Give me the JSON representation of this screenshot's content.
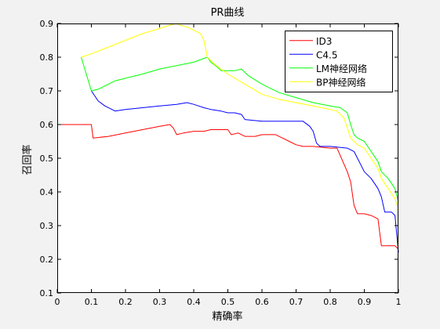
{
  "chart_data": {
    "type": "line",
    "title": "PR曲线",
    "xlabel": "精确率",
    "ylabel": "召回率",
    "xlim": [
      0,
      1
    ],
    "ylim": [
      0.1,
      0.9
    ],
    "xticks": [
      0,
      0.1,
      0.2,
      0.3,
      0.4,
      0.5,
      0.6,
      0.7,
      0.8,
      0.9,
      1
    ],
    "xtick_labels": [
      "0",
      "0.1",
      "0.2",
      "0.3",
      "0.4",
      "0.5",
      "0.6",
      "0.7",
      "0.8",
      "0.9",
      "1"
    ],
    "yticks": [
      0.1,
      0.2,
      0.3,
      0.4,
      0.5,
      0.6,
      0.7,
      0.8,
      0.9
    ],
    "ytick_labels": [
      "0.1",
      "0.2",
      "0.3",
      "0.4",
      "0.5",
      "0.6",
      "0.7",
      "0.8",
      "0.9"
    ],
    "grid": false,
    "legend_position": "top-right",
    "series": [
      {
        "name": "ID3",
        "color": "#ff0000",
        "x": [
          0,
          0.05,
          0.1,
          0.105,
          0.15,
          0.2,
          0.25,
          0.3,
          0.33,
          0.34,
          0.35,
          0.37,
          0.4,
          0.43,
          0.45,
          0.48,
          0.5,
          0.51,
          0.53,
          0.55,
          0.56,
          0.58,
          0.6,
          0.62,
          0.64,
          0.66,
          0.68,
          0.7,
          0.72,
          0.75,
          0.8,
          0.82,
          0.85,
          0.86,
          0.87,
          0.88,
          0.9,
          0.92,
          0.94,
          0.95,
          0.97,
          0.99,
          1.0
        ],
        "y": [
          0.6,
          0.6,
          0.6,
          0.56,
          0.565,
          0.575,
          0.585,
          0.595,
          0.6,
          0.59,
          0.57,
          0.575,
          0.58,
          0.58,
          0.585,
          0.585,
          0.585,
          0.57,
          0.575,
          0.565,
          0.565,
          0.565,
          0.57,
          0.57,
          0.57,
          0.56,
          0.55,
          0.54,
          0.535,
          0.535,
          0.53,
          0.53,
          0.46,
          0.43,
          0.36,
          0.335,
          0.335,
          0.33,
          0.32,
          0.24,
          0.24,
          0.24,
          0.23
        ]
      },
      {
        "name": "C4.5",
        "color": "#0000ff",
        "x": [
          0.1,
          0.12,
          0.14,
          0.17,
          0.2,
          0.25,
          0.3,
          0.35,
          0.38,
          0.4,
          0.43,
          0.45,
          0.48,
          0.5,
          0.52,
          0.54,
          0.55,
          0.6,
          0.65,
          0.7,
          0.72,
          0.74,
          0.75,
          0.76,
          0.77,
          0.8,
          0.85,
          0.87,
          0.9,
          0.92,
          0.94,
          0.95,
          0.96,
          0.98,
          0.99,
          1.0
        ],
        "y": [
          0.7,
          0.67,
          0.655,
          0.64,
          0.645,
          0.65,
          0.655,
          0.66,
          0.665,
          0.66,
          0.65,
          0.645,
          0.64,
          0.635,
          0.635,
          0.63,
          0.615,
          0.61,
          0.61,
          0.61,
          0.61,
          0.595,
          0.58,
          0.545,
          0.535,
          0.535,
          0.53,
          0.52,
          0.46,
          0.44,
          0.41,
          0.385,
          0.34,
          0.34,
          0.33,
          0.22
        ]
      },
      {
        "name": "LM神经网络",
        "color": "#00ff00",
        "x": [
          0.07,
          0.1,
          0.12,
          0.17,
          0.25,
          0.3,
          0.35,
          0.4,
          0.44,
          0.45,
          0.47,
          0.48,
          0.52,
          0.54,
          0.56,
          0.6,
          0.65,
          0.7,
          0.75,
          0.8,
          0.83,
          0.85,
          0.86,
          0.87,
          0.88,
          0.9,
          0.92,
          0.94,
          0.95,
          0.97,
          0.99,
          1.0
        ],
        "y": [
          0.8,
          0.7,
          0.705,
          0.73,
          0.75,
          0.765,
          0.775,
          0.785,
          0.8,
          0.785,
          0.77,
          0.76,
          0.76,
          0.765,
          0.745,
          0.72,
          0.695,
          0.68,
          0.665,
          0.655,
          0.65,
          0.635,
          0.6,
          0.57,
          0.56,
          0.55,
          0.52,
          0.49,
          0.46,
          0.44,
          0.41,
          0.37
        ]
      },
      {
        "name": "BP神经网络",
        "color": "#ffff00",
        "x": [
          0.07,
          0.1,
          0.15,
          0.2,
          0.25,
          0.3,
          0.33,
          0.35,
          0.36,
          0.38,
          0.4,
          0.42,
          0.43,
          0.44,
          0.46,
          0.5,
          0.55,
          0.6,
          0.65,
          0.7,
          0.75,
          0.8,
          0.82,
          0.84,
          0.86,
          0.88,
          0.9,
          0.92,
          0.94,
          0.95,
          0.97,
          0.99,
          1.0
        ],
        "y": [
          0.8,
          0.81,
          0.83,
          0.85,
          0.87,
          0.885,
          0.895,
          0.9,
          0.895,
          0.89,
          0.88,
          0.87,
          0.85,
          0.8,
          0.78,
          0.75,
          0.72,
          0.69,
          0.675,
          0.665,
          0.655,
          0.645,
          0.64,
          0.62,
          0.56,
          0.54,
          0.53,
          0.5,
          0.47,
          0.44,
          0.41,
          0.38,
          0.35
        ]
      }
    ]
  }
}
